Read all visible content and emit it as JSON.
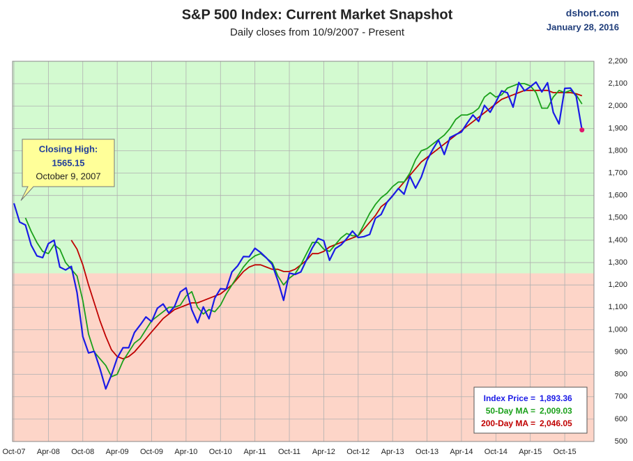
{
  "chart_data": {
    "type": "line",
    "title": "S&P 500 Index: Current Market Snapshot",
    "subtitle": "Daily closes from 10/9/2007 - Present",
    "source": "dshort.com",
    "date": "January 28, 2016",
    "categories": [
      "Oct-07",
      null,
      null,
      null,
      null,
      null,
      "Apr-08",
      null,
      null,
      null,
      null,
      null,
      "Oct-08",
      null,
      null,
      null,
      null,
      null,
      "Apr-09",
      null,
      null,
      null,
      null,
      null,
      "Oct-09",
      null,
      null,
      null,
      null,
      null,
      "Apr-10",
      null,
      null,
      null,
      null,
      null,
      "Oct-10",
      null,
      null,
      null,
      null,
      null,
      "Apr-11",
      null,
      null,
      null,
      null,
      null,
      "Oct-11",
      null,
      null,
      null,
      null,
      null,
      "Apr-12",
      null,
      null,
      null,
      null,
      null,
      "Oct-12",
      null,
      null,
      null,
      null,
      null,
      "Apr-13",
      null,
      null,
      null,
      null,
      null,
      "Oct-13",
      null,
      null,
      null,
      null,
      null,
      "Apr-14",
      null,
      null,
      null,
      null,
      null,
      "Oct-14",
      null,
      null,
      null,
      null,
      null,
      "Apr-15",
      null,
      null,
      null,
      null,
      null,
      "Oct-15",
      null,
      null,
      null
    ],
    "series": [
      {
        "name": "Index Price",
        "color": "#1a1ae6",
        "values": [
          1565,
          1481,
          1468,
          1378,
          1330,
          1322,
          1385,
          1400,
          1280,
          1267,
          1283,
          1166,
          969,
          896,
          903,
          826,
          735,
          798,
          873,
          919,
          919,
          987,
          1021,
          1057,
          1036,
          1096,
          1115,
          1074,
          1104,
          1169,
          1187,
          1089,
          1031,
          1102,
          1049,
          1141,
          1183,
          1181,
          1258,
          1286,
          1327,
          1326,
          1364,
          1345,
          1321,
          1292,
          1219,
          1131,
          1253,
          1247,
          1258,
          1312,
          1366,
          1408,
          1398,
          1310,
          1362,
          1379,
          1407,
          1441,
          1412,
          1416,
          1426,
          1498,
          1515,
          1569,
          1598,
          1631,
          1606,
          1686,
          1633,
          1682,
          1757,
          1806,
          1848,
          1783,
          1859,
          1872,
          1884,
          1924,
          1960,
          1931,
          2003,
          1972,
          2018,
          2068,
          2059,
          1995,
          2105,
          2068,
          2086,
          2107,
          2063,
          2104,
          1972,
          1920,
          2079,
          2080,
          2044,
          1893
        ]
      },
      {
        "name": "50-Day MA",
        "color": "#1aa01a",
        "values": [
          null,
          null,
          1500,
          1440,
          1390,
          1350,
          1340,
          1380,
          1360,
          1300,
          1270,
          1240,
          1130,
          980,
          900,
          870,
          840,
          790,
          800,
          860,
          900,
          940,
          960,
          1000,
          1040,
          1060,
          1080,
          1100,
          1100,
          1110,
          1150,
          1170,
          1100,
          1070,
          1090,
          1080,
          1110,
          1160,
          1200,
          1240,
          1280,
          1310,
          1330,
          1340,
          1320,
          1300,
          1240,
          1200,
          1230,
          1250,
          1290,
          1340,
          1390,
          1390,
          1360,
          1350,
          1380,
          1410,
          1430,
          1420,
          1420,
          1470,
          1520,
          1560,
          1590,
          1610,
          1640,
          1660,
          1660,
          1700,
          1760,
          1800,
          1810,
          1830,
          1850,
          1870,
          1900,
          1940,
          1960,
          1960,
          1970,
          1990,
          2040,
          2060,
          2040,
          2050,
          2080,
          2090,
          2100,
          2100,
          2090,
          2060,
          1990,
          1990,
          2040,
          2070,
          2060,
          2070,
          2050,
          2009
        ]
      },
      {
        "name": "200-Day MA",
        "color": "#c00000",
        "values": [
          null,
          null,
          null,
          null,
          null,
          null,
          null,
          null,
          null,
          null,
          1400,
          1360,
          1290,
          1200,
          1120,
          1040,
          970,
          910,
          880,
          870,
          880,
          900,
          930,
          960,
          990,
          1020,
          1050,
          1070,
          1090,
          1100,
          1110,
          1120,
          1120,
          1130,
          1140,
          1150,
          1160,
          1180,
          1200,
          1230,
          1260,
          1280,
          1290,
          1290,
          1280,
          1270,
          1270,
          1260,
          1260,
          1270,
          1290,
          1310,
          1340,
          1340,
          1350,
          1370,
          1380,
          1390,
          1400,
          1410,
          1420,
          1450,
          1480,
          1510,
          1550,
          1570,
          1600,
          1630,
          1660,
          1690,
          1720,
          1750,
          1770,
          1790,
          1810,
          1830,
          1850,
          1870,
          1890,
          1910,
          1930,
          1950,
          1970,
          1990,
          2010,
          2030,
          2040,
          2050,
          2060,
          2070,
          2070,
          2070,
          2070,
          2070,
          2060,
          2060,
          2060,
          2060,
          2055,
          2046
        ]
      }
    ],
    "ylim": [
      500,
      2200
    ],
    "yticks": [
      500,
      600,
      700,
      800,
      900,
      {
        "value": 1000,
        "label": "1,000"
      },
      {
        "value": 1100,
        "label": "1,100"
      },
      {
        "value": 1200,
        "label": "1,200"
      },
      {
        "value": 1300,
        "label": "1,300"
      },
      {
        "value": 1400,
        "label": "1,400"
      },
      {
        "value": 1500,
        "label": "1,500"
      },
      {
        "value": 1600,
        "label": "1,600"
      },
      {
        "value": 1700,
        "label": "1,700"
      },
      {
        "value": 1800,
        "label": "1,800"
      },
      {
        "value": 1900,
        "label": "1,900"
      },
      {
        "value": 2000,
        "label": "2,000"
      },
      {
        "value": 2100,
        "label": "2,100"
      },
      {
        "value": 2200,
        "label": "2,200"
      }
    ],
    "grid": true,
    "bands": [
      {
        "from": 500,
        "to": 1252,
        "color": "#fdd5c8"
      },
      {
        "from": 1252,
        "to": 2200,
        "color": "#d3fad0"
      }
    ],
    "callout": {
      "title": "Closing High:",
      "value": 1565.15,
      "date": "October 9, 2007"
    },
    "info_box": [
      {
        "label": "Index Price =",
        "value": 1893.36,
        "value_label": "1,893.36",
        "color": "#1a1ae6"
      },
      {
        "label": "50-Day MA =",
        "value": 2009.03,
        "value_label": "2,009.03",
        "color": "#1aa01a"
      },
      {
        "label": "200-Day MA =",
        "value": 2046.05,
        "value_label": "2,046.05",
        "color": "#c00000"
      }
    ]
  }
}
